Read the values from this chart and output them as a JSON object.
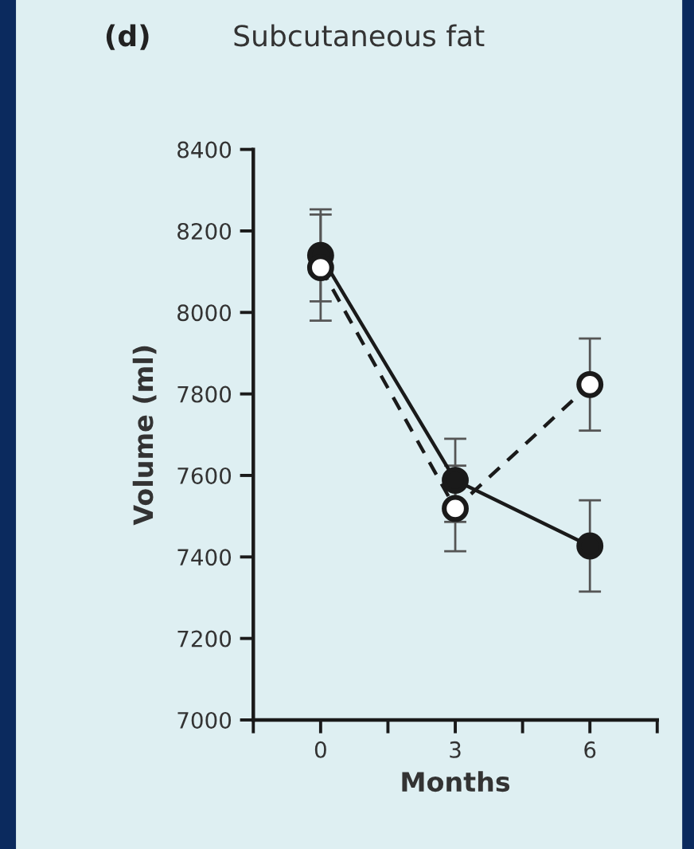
{
  "chart_data": {
    "type": "line",
    "title": "Subcutaneous fat",
    "annotations": [
      "(d)"
    ],
    "xlabel": "Months",
    "ylabel": "Volume (ml)",
    "x": [
      0,
      3,
      6
    ],
    "xlim": [
      -1.5,
      7.5
    ],
    "xticks": [
      {
        "value": -1.5,
        "label": null
      },
      0,
      {
        "value": 1.5,
        "label": null
      },
      3,
      {
        "value": 4.5,
        "label": null
      },
      6,
      {
        "value": 7.5,
        "label": null
      }
    ],
    "ylim": [
      7000,
      8400
    ],
    "yticks": [
      7000,
      7200,
      7400,
      7600,
      7800,
      8000,
      8200,
      8400
    ],
    "grid": false,
    "legend": false,
    "marker": "circle",
    "series": [
      {
        "color": "#1a1a1a",
        "line_style": "solid",
        "values": [
          8140,
          7588,
          7427
        ],
        "errors": [
          113,
          102,
          112
        ]
      },
      {
        "color": "#1a1a1a",
        "line_style": "dashed",
        "values": [
          8110,
          7519,
          7823
        ],
        "errors": [
          130,
          105,
          113
        ]
      }
    ]
  }
}
